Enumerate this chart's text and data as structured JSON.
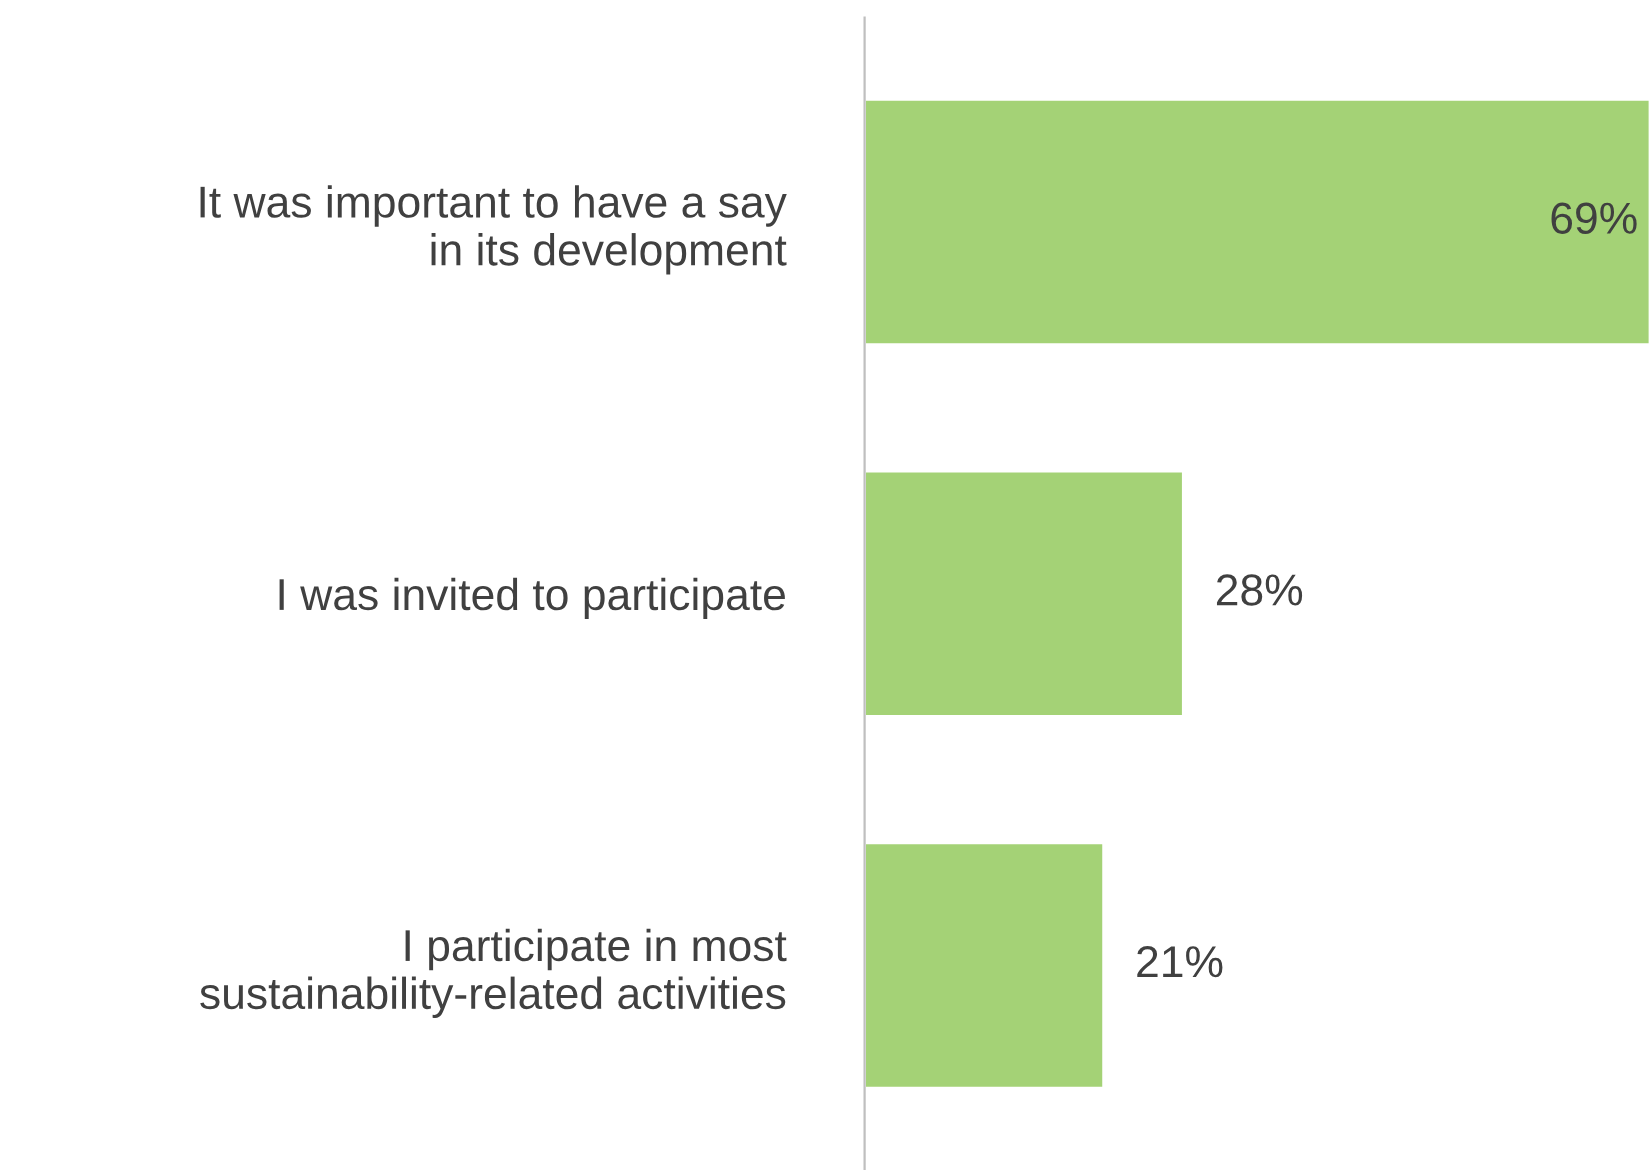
{
  "chart_data": {
    "type": "bar",
    "orientation": "horizontal",
    "categories": [
      "It was important to have a say\nin its development",
      "I was invited to participate",
      "I participate in most\nsustainability-related activities"
    ],
    "values": [
      69,
      28,
      21
    ],
    "value_labels": [
      "69%",
      "28%",
      "21%"
    ],
    "color": "#a4d276",
    "grid": false,
    "legend": false
  }
}
